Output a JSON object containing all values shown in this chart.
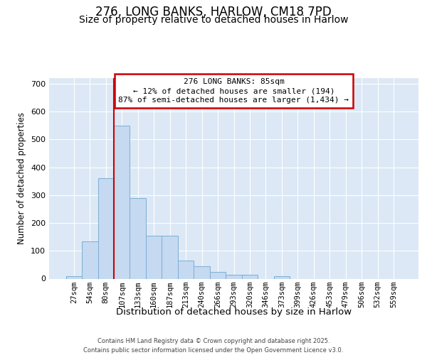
{
  "title_line1": "276, LONG BANKS, HARLOW, CM18 7PD",
  "title_line2": "Size of property relative to detached houses in Harlow",
  "xlabel": "Distribution of detached houses by size in Harlow",
  "ylabel": "Number of detached properties",
  "categories": [
    "27sqm",
    "54sqm",
    "80sqm",
    "107sqm",
    "133sqm",
    "160sqm",
    "187sqm",
    "213sqm",
    "240sqm",
    "266sqm",
    "293sqm",
    "320sqm",
    "346sqm",
    "373sqm",
    "399sqm",
    "426sqm",
    "453sqm",
    "479sqm",
    "506sqm",
    "532sqm",
    "559sqm"
  ],
  "values": [
    10,
    135,
    360,
    550,
    290,
    155,
    155,
    65,
    45,
    25,
    15,
    15,
    0,
    8,
    0,
    0,
    0,
    0,
    0,
    0,
    0
  ],
  "bar_color": "#c5d9f1",
  "bar_edge_color": "#7bafd4",
  "red_line_x": 2.5,
  "annotation_line1": "276 LONG BANKS: 85sqm",
  "annotation_line2": "← 12% of detached houses are smaller (194)",
  "annotation_line3": "87% of semi-detached houses are larger (1,434) →",
  "annotation_box_facecolor": "#ffffff",
  "annotation_box_edgecolor": "#cc0000",
  "red_line_color": "#cc0000",
  "ylim": [
    0,
    720
  ],
  "yticks": [
    0,
    100,
    200,
    300,
    400,
    500,
    600,
    700
  ],
  "grid_color": "#ffffff",
  "background_color": "#dce8f5",
  "footer_line1": "Contains HM Land Registry data © Crown copyright and database right 2025.",
  "footer_line2": "Contains public sector information licensed under the Open Government Licence v3.0.",
  "title_fontsize": 12,
  "subtitle_fontsize": 10,
  "annot_fontsize": 8,
  "tick_fontsize": 7.5,
  "ylabel_fontsize": 8.5,
  "xlabel_fontsize": 9.5
}
